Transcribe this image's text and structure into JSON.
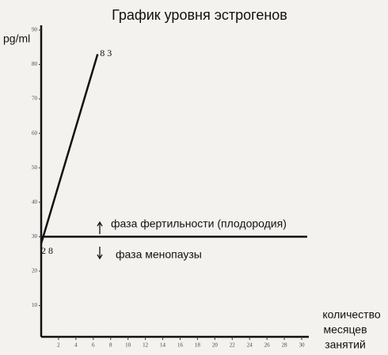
{
  "chart_data": {
    "type": "line",
    "title": "График уровня эстрогенов",
    "y_label": "pg/ml",
    "x_label": [
      "количество",
      "месяцев",
      "занятий"
    ],
    "x": [
      0,
      6.5
    ],
    "values": [
      28,
      83
    ],
    "color": "#111111",
    "xlim": [
      0,
      30
    ],
    "ylim": [
      0,
      90
    ],
    "xticks": [
      2,
      4,
      6,
      8,
      10,
      12,
      14,
      16,
      18,
      20,
      22,
      24,
      26,
      28,
      30
    ],
    "yticks": [
      10,
      20,
      30,
      40,
      50,
      60,
      70,
      80,
      90
    ],
    "threshold": 30,
    "annotations": [
      "фаза фертильности (плодородия)",
      "фаза менопаузы"
    ]
  }
}
